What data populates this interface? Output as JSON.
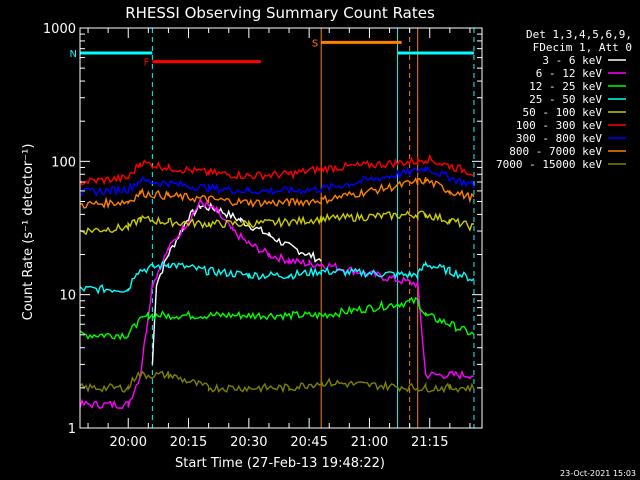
{
  "chart_data": {
    "type": "line",
    "title": "RHESSI Observing Summary Count Rates",
    "xlabel": "Start Time (27-Feb-13 19:48:22)",
    "ylabel": "Count Rate (s⁻¹ detector⁻¹)",
    "yscale": "log",
    "ylim": [
      1,
      1000
    ],
    "xlim": [
      "19:48",
      "21:28"
    ],
    "x_tick_labels": [
      "20:00",
      "20:15",
      "20:30",
      "20:45",
      "21:00",
      "21:15"
    ],
    "y_tick_labels": [
      "1",
      "10",
      "100",
      "1000"
    ],
    "legend_header": [
      "Det 1,3,4,5,6,9,",
      "FDecim 1, Att 0"
    ],
    "legend_placement": "right",
    "footer_date": "23-Oct-2021 15:03",
    "series": [
      {
        "name": "3 - 6 keV",
        "color": "#ffffff",
        "x": [
          "19:48",
          "20:05",
          "20:06",
          "20:07",
          "20:10",
          "20:15",
          "20:18",
          "20:22",
          "20:28",
          "20:35",
          "20:40",
          "20:45",
          "20:48",
          "21:12",
          "21:26"
        ],
        "y": [
          null,
          null,
          3,
          12,
          20,
          38,
          46,
          44,
          36,
          28,
          23,
          20,
          18,
          null,
          null
        ]
      },
      {
        "name": "6 - 12 keV",
        "color": "#ff00ff",
        "x": [
          "19:48",
          "20:00",
          "20:03",
          "20:06",
          "20:10",
          "20:15",
          "20:18",
          "20:22",
          "20:26",
          "20:30",
          "20:35",
          "20:40",
          "20:45",
          "20:48",
          "21:12",
          "21:14",
          "21:20",
          "21:26"
        ],
        "y": [
          1.5,
          1.5,
          2.5,
          12,
          22,
          36,
          50,
          42,
          30,
          24,
          20,
          18,
          17,
          17,
          12,
          2.5,
          2.5,
          2.5
        ]
      },
      {
        "name": "12 - 25 keV",
        "color": "#00ff00",
        "x": [
          "19:48",
          "20:00",
          "20:02",
          "20:05",
          "20:10",
          "20:20",
          "20:30",
          "20:40",
          "20:48",
          "21:12",
          "21:14",
          "21:20",
          "21:26"
        ],
        "y": [
          5,
          5,
          6,
          7,
          7,
          7,
          7,
          7,
          7,
          9,
          7,
          6,
          5
        ]
      },
      {
        "name": "25 - 50 keV",
        "color": "#00ffff",
        "x": [
          "19:48",
          "20:00",
          "20:02",
          "20:10",
          "20:20",
          "20:30",
          "20:40",
          "20:48",
          "21:12",
          "21:14",
          "21:20",
          "21:26"
        ],
        "y": [
          11,
          11,
          15,
          17,
          15,
          14,
          14,
          15,
          14,
          17,
          15,
          13
        ]
      },
      {
        "name": "50 - 100 keV",
        "color": "#cccc00",
        "x": [
          "19:48",
          "20:00",
          "20:03",
          "20:10",
          "20:20",
          "20:30",
          "20:40",
          "20:48",
          "21:12",
          "21:14",
          "21:20",
          "21:26"
        ],
        "y": [
          30,
          32,
          37,
          35,
          34,
          34,
          35,
          37,
          40,
          40,
          36,
          32
        ]
      },
      {
        "name": "100 - 300 keV",
        "color": "#ff0000",
        "x": [
          "19:48",
          "20:00",
          "20:03",
          "20:10",
          "20:20",
          "20:30",
          "20:40",
          "20:48",
          "21:12",
          "21:14",
          "21:20",
          "21:26"
        ],
        "y": [
          70,
          75,
          98,
          90,
          82,
          78,
          80,
          88,
          100,
          105,
          92,
          82
        ]
      },
      {
        "name": "300 - 800 keV",
        "color": "#0000ff",
        "x": [
          "19:48",
          "20:00",
          "20:03",
          "20:10",
          "20:20",
          "20:30",
          "20:40",
          "20:48",
          "21:12",
          "21:14",
          "21:20",
          "21:26"
        ],
        "y": [
          58,
          62,
          72,
          68,
          63,
          60,
          60,
          62,
          85,
          90,
          75,
          66
        ]
      },
      {
        "name": "800 - 7000 keV",
        "color": "#ff8000",
        "x": [
          "19:48",
          "20:00",
          "20:03",
          "20:10",
          "20:20",
          "20:30",
          "20:40",
          "20:48",
          "21:12",
          "21:14",
          "21:20",
          "21:26"
        ],
        "y": [
          47,
          50,
          58,
          55,
          52,
          49,
          49,
          51,
          70,
          72,
          60,
          53
        ]
      },
      {
        "name": "7000 - 15000 keV",
        "color": "#808000",
        "x": [
          "19:48",
          "20:00",
          "20:02",
          "20:10",
          "20:20",
          "20:30",
          "20:40",
          "20:48",
          "21:12",
          "21:14",
          "21:20",
          "21:26"
        ],
        "y": [
          2,
          2,
          2.5,
          2.5,
          2,
          2,
          2,
          2.2,
          2,
          2,
          2,
          2
        ]
      }
    ],
    "annotation_bars": [
      {
        "label": "N",
        "color": "#00ffff",
        "start": "19:48",
        "end": "20:06",
        "y": 650
      },
      {
        "label": "F",
        "color": "#ff0000",
        "start": "20:06",
        "end": "20:33",
        "y": 560
      },
      {
        "label": "S",
        "color": "#ff8000",
        "start": "20:48",
        "end": "21:08",
        "y": 780
      },
      {
        "label": "",
        "color": "#00ffff",
        "start": "21:07",
        "end": "21:26",
        "y": 650
      }
    ],
    "vertical_markers": [
      {
        "time": "20:06",
        "color": "#00ffff",
        "style": "dashed"
      },
      {
        "time": "20:48",
        "color": "#ff8000",
        "style": "solid"
      },
      {
        "time": "21:07",
        "color": "#00ffff",
        "style": "solid"
      },
      {
        "time": "21:10",
        "color": "#ff8000",
        "style": "dashed"
      },
      {
        "time": "21:12",
        "color": "#ff8000",
        "style": "solid"
      },
      {
        "time": "21:26",
        "color": "#00ffff",
        "style": "dashed"
      }
    ],
    "grid": false
  }
}
